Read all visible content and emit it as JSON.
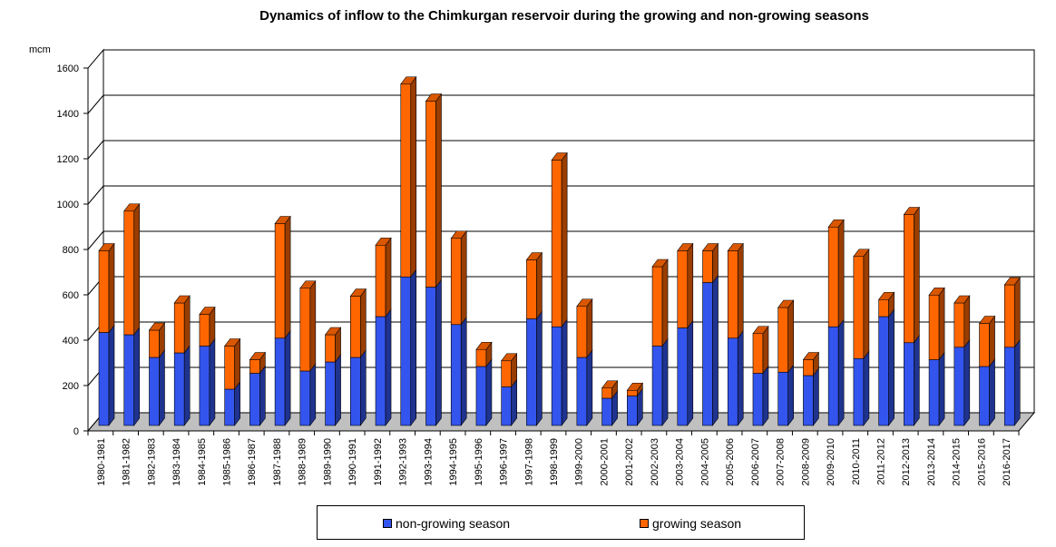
{
  "chart_data": {
    "type": "bar",
    "stacked": true,
    "title": "Dynamics of inflow to the Chimkurgan reservoir during the growing and non-growing seasons",
    "ylabel": "mcm",
    "xlabel": "",
    "ylim": [
      0,
      1600
    ],
    "yticks": [
      0,
      200,
      400,
      600,
      800,
      1000,
      1200,
      1400,
      1600
    ],
    "grid": true,
    "legend_position": "bottom",
    "categories": [
      "1980-1981",
      "1981-1982",
      "1982-1983",
      "1983-1984",
      "1984-1985",
      "1985-1986",
      "1986-1987",
      "1987-1988",
      "1988-1989",
      "1989-1990",
      "1990-1991",
      "1991-1992",
      "1992-1993",
      "1993-1994",
      "1994-1995",
      "1995-1996",
      "1996-1997",
      "1997-1998",
      "1998-1999",
      "1999-2000",
      "2000-2001",
      "2001-2002",
      "2002-2003",
      "2003-2004",
      "2004-2005",
      "2005-2006",
      "2006-2007",
      "2007-2008",
      "2008-2009",
      "2009-2010",
      "2010-2011",
      "2011-2012",
      "2012-2013",
      "2013-2014",
      "2014-2015",
      "2015-2016",
      "2016-2017"
    ],
    "series": [
      {
        "name": "non-growing season",
        "color": "#3355ee",
        "values": [
          410,
          400,
          300,
          320,
          350,
          160,
          230,
          385,
          240,
          280,
          300,
          480,
          655,
          610,
          445,
          260,
          170,
          470,
          435,
          300,
          120,
          130,
          350,
          430,
          630,
          385,
          230,
          235,
          220,
          435,
          295,
          480,
          365,
          290,
          345,
          260,
          345
        ]
      },
      {
        "name": "growing season",
        "color": "#ff6600",
        "values": [
          360,
          545,
          120,
          220,
          140,
          190,
          60,
          505,
          365,
          120,
          270,
          315,
          850,
          820,
          380,
          75,
          115,
          260,
          735,
          225,
          45,
          25,
          350,
          340,
          140,
          385,
          175,
          285,
          70,
          440,
          450,
          75,
          565,
          285,
          195,
          190,
          275
        ]
      }
    ]
  }
}
